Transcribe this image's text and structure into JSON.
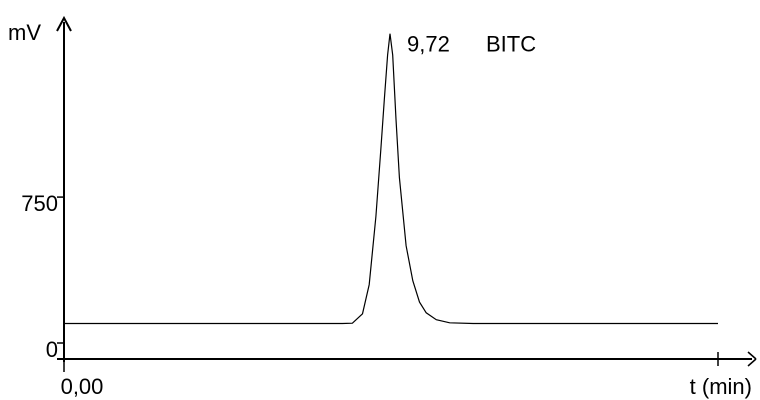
{
  "chart_data": {
    "type": "line",
    "title": "",
    "xlabel": "t (min)",
    "ylabel": "mV",
    "xlim": [
      0,
      19.5
    ],
    "ylim": [
      0,
      1650
    ],
    "grid": false,
    "legend": "none",
    "xticks": [
      {
        "value": 0,
        "label": "0,00"
      }
    ],
    "yticks": [
      {
        "value": 0,
        "label": "0"
      },
      {
        "value": 750,
        "label": "750"
      }
    ],
    "annotations": [
      {
        "x": 9.72,
        "y": 1580,
        "text": "9,72",
        "label": "BITC"
      }
    ],
    "series": [
      {
        "x": [
          0,
          8.3,
          8.6,
          8.9,
          9.1,
          9.3,
          9.45,
          9.55,
          9.65,
          9.72,
          9.8,
          9.9,
          10.0,
          10.2,
          10.4,
          10.6,
          10.8,
          11.1,
          11.5,
          12.2,
          14,
          16,
          19.5
        ],
        "y": [
          100,
          100,
          102,
          150,
          300,
          650,
          1000,
          1250,
          1480,
          1590,
          1480,
          1150,
          850,
          500,
          320,
          210,
          155,
          120,
          104,
          100,
          100,
          100,
          100
        ]
      }
    ]
  }
}
